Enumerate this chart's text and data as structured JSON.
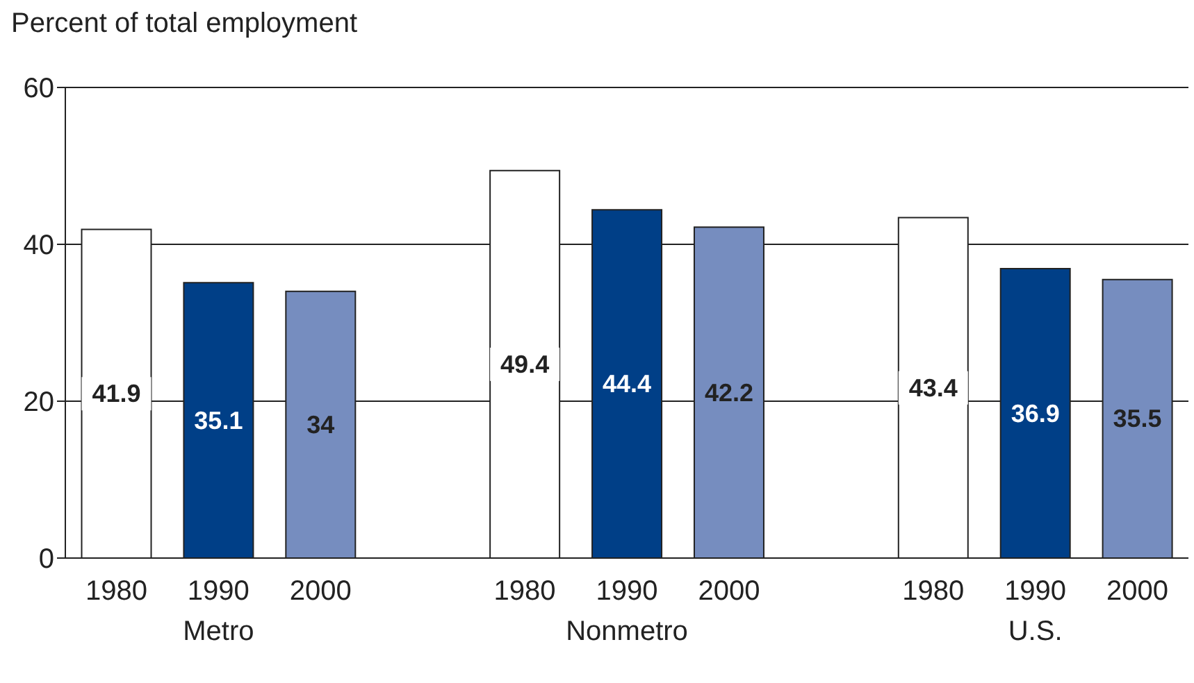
{
  "chart_data": {
    "type": "bar",
    "ylabel": "Percent of total employment",
    "categories": [
      "1980",
      "1990",
      "2000",
      null,
      "1980",
      "1990",
      "2000",
      null,
      "1980",
      "1990",
      "2000"
    ],
    "values": [
      41.9,
      35.1,
      34,
      null,
      49.4,
      44.4,
      42.2,
      null,
      43.4,
      36.9,
      35.5
    ],
    "colors": [
      "#ffffff",
      "#003f87",
      "#768dbf",
      "#ffffff",
      "#ffffff",
      "#003f87",
      "#768dbf",
      "#ffffff",
      "#ffffff",
      "#003f87",
      "#768dbf"
    ],
    "ylim": [
      0,
      60
    ],
    "yticks": [
      0,
      20,
      40,
      60
    ],
    "grid": "y",
    "data_labels": true,
    "annotations": [
      "Metro",
      "Nonmetro",
      "U.S."
    ]
  }
}
